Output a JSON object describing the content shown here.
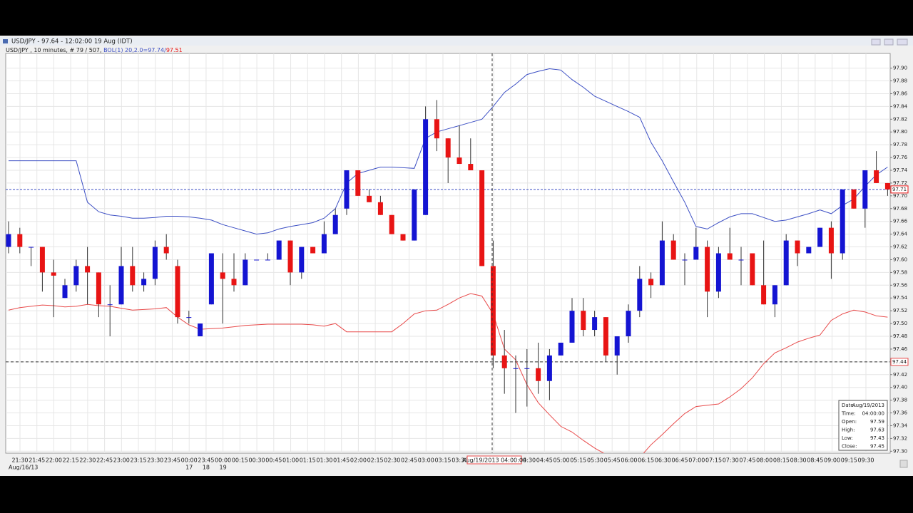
{
  "window": {
    "title": "USD/JPY - 97.64 - 12:02:00 19 Aug (IDT)",
    "legend": {
      "symbol": "USD/JPY , 10 minutes, # 79 / 507, ",
      "upper": "BOL(1) 20,2.0=97.74/",
      "lower": "97.51"
    }
  },
  "chart_data": {
    "type": "candlestick",
    "up_color": "#1414d2",
    "down_color": "#e81414",
    "open": [
      97.62,
      97.64,
      97.62,
      97.62,
      97.58,
      97.54,
      97.56,
      97.59,
      97.58,
      97.53,
      97.53,
      97.59,
      97.56,
      97.57,
      97.62,
      97.59,
      97.51,
      97.48,
      97.53,
      97.58,
      97.57,
      97.56,
      97.6,
      97.6,
      97.6,
      97.63,
      97.58,
      97.62,
      97.61,
      97.64,
      97.68,
      97.74,
      97.7,
      97.69,
      97.67,
      97.64,
      97.63,
      97.67,
      97.82,
      97.79,
      97.76,
      97.75,
      97.74,
      97.59,
      97.45,
      97.43,
      97.43,
      97.43,
      97.41,
      97.45,
      97.47,
      97.52,
      97.49,
      97.51,
      97.45,
      97.48,
      97.52,
      97.57,
      97.56,
      97.63,
      97.6,
      97.6,
      97.62,
      97.55,
      97.61,
      97.6,
      97.61,
      97.56,
      97.53,
      97.56,
      97.63,
      97.61,
      97.62,
      97.65,
      97.61,
      97.71,
      97.68,
      97.74,
      97.72
    ],
    "high": [
      97.66,
      97.65,
      97.62,
      97.62,
      97.6,
      97.57,
      97.6,
      97.62,
      97.58,
      97.56,
      97.62,
      97.62,
      97.58,
      97.63,
      97.64,
      97.6,
      97.52,
      97.5,
      97.61,
      97.61,
      97.61,
      97.61,
      97.6,
      97.61,
      97.63,
      97.63,
      97.62,
      97.62,
      97.66,
      97.68,
      97.74,
      97.74,
      97.71,
      97.7,
      97.67,
      97.64,
      97.71,
      97.84,
      97.85,
      97.79,
      97.81,
      97.79,
      97.74,
      97.63,
      97.49,
      97.45,
      97.46,
      97.47,
      97.46,
      97.47,
      97.54,
      97.54,
      97.52,
      97.51,
      97.48,
      97.53,
      97.59,
      97.58,
      97.66,
      97.64,
      97.61,
      97.65,
      97.63,
      97.62,
      97.65,
      97.62,
      97.61,
      97.63,
      97.56,
      97.64,
      97.63,
      97.62,
      97.65,
      97.66,
      97.71,
      97.71,
      97.74,
      97.77,
      97.72
    ],
    "low": [
      97.61,
      97.61,
      97.59,
      97.55,
      97.51,
      97.54,
      97.55,
      97.53,
      97.51,
      97.48,
      97.53,
      97.55,
      97.55,
      97.56,
      97.6,
      97.5,
      97.5,
      97.48,
      97.53,
      97.5,
      97.55,
      97.56,
      97.6,
      97.6,
      97.6,
      97.56,
      97.57,
      97.61,
      97.61,
      97.64,
      97.67,
      97.7,
      97.69,
      97.67,
      97.64,
      97.63,
      97.63,
      97.67,
      97.77,
      97.72,
      97.75,
      97.74,
      97.59,
      97.43,
      97.39,
      97.36,
      97.37,
      97.39,
      97.38,
      97.45,
      97.47,
      97.48,
      97.48,
      97.44,
      97.42,
      97.47,
      97.51,
      97.54,
      97.56,
      97.6,
      97.56,
      97.6,
      97.51,
      97.54,
      97.6,
      97.56,
      97.56,
      97.53,
      97.51,
      97.56,
      97.59,
      97.61,
      97.62,
      97.57,
      97.6,
      97.68,
      97.65,
      97.72,
      97.7
    ],
    "close": [
      97.64,
      97.62,
      97.62,
      97.58,
      97.575,
      97.56,
      97.59,
      97.58,
      97.53,
      97.53,
      97.59,
      97.56,
      97.57,
      97.62,
      97.61,
      97.51,
      97.51,
      97.5,
      97.61,
      97.57,
      97.56,
      97.6,
      97.6,
      97.6,
      97.63,
      97.58,
      97.62,
      97.61,
      97.64,
      97.67,
      97.74,
      97.7,
      97.69,
      97.67,
      97.64,
      97.63,
      97.71,
      97.82,
      97.79,
      97.76,
      97.75,
      97.74,
      97.59,
      97.45,
      97.43,
      97.43,
      97.43,
      97.41,
      97.45,
      97.47,
      97.52,
      97.49,
      97.51,
      97.45,
      97.48,
      97.52,
      97.57,
      97.56,
      97.63,
      97.6,
      97.6,
      97.62,
      97.55,
      97.61,
      97.6,
      97.6,
      97.56,
      97.53,
      97.56,
      97.63,
      97.61,
      97.62,
      97.65,
      97.61,
      97.71,
      97.68,
      97.74,
      97.72,
      97.71
    ],
    "bands": {
      "upper_color": "#3c4fc4",
      "lower_color": "#e84a4a",
      "upper": [
        97.755,
        97.755,
        97.755,
        97.755,
        97.755,
        97.755,
        97.755,
        97.69,
        97.675,
        97.67,
        97.668,
        97.665,
        97.665,
        97.666,
        97.668,
        97.668,
        97.667,
        97.665,
        97.662,
        97.655,
        97.65,
        97.645,
        97.64,
        97.642,
        97.648,
        97.652,
        97.655,
        97.658,
        97.665,
        97.68,
        97.72,
        97.735,
        97.74,
        97.745,
        97.745,
        97.744,
        97.743,
        97.79,
        97.8,
        97.805,
        97.81,
        97.815,
        97.82,
        97.84,
        97.862,
        97.875,
        97.89,
        97.895,
        97.899,
        97.897,
        97.882,
        97.87,
        97.856,
        97.848,
        97.84,
        97.832,
        97.823,
        97.784,
        97.755,
        97.722,
        97.69,
        97.652,
        97.648,
        97.658,
        97.667,
        97.672,
        97.672,
        97.666,
        97.66,
        97.662,
        97.667,
        97.672,
        97.678,
        97.672,
        97.685,
        97.695,
        97.715,
        97.733,
        97.745
      ],
      "lower": [
        97.521,
        97.525,
        97.527,
        97.529,
        97.528,
        97.526,
        97.527,
        97.53,
        97.528,
        97.527,
        97.524,
        97.521,
        97.522,
        97.523,
        97.525,
        97.51,
        97.498,
        97.491,
        97.492,
        97.493,
        97.495,
        97.497,
        97.498,
        97.499,
        97.499,
        97.499,
        97.499,
        97.498,
        97.496,
        97.5,
        97.487,
        97.487,
        97.487,
        97.487,
        97.487,
        97.5,
        97.515,
        97.52,
        97.521,
        97.53,
        97.54,
        97.547,
        97.543,
        97.515,
        97.46,
        97.443,
        97.404,
        97.376,
        97.357,
        97.339,
        97.33,
        97.317,
        97.305,
        97.295,
        97.29,
        97.288,
        97.29,
        97.31,
        97.326,
        97.343,
        97.359,
        97.37,
        97.372,
        97.374,
        97.385,
        97.398,
        97.415,
        97.437,
        97.454,
        97.462,
        97.471,
        97.477,
        97.482,
        97.505,
        97.515,
        97.521,
        97.518,
        97.512,
        97.51
      ]
    },
    "ylim": [
      97.297,
      97.923
    ],
    "yticks": [
      {
        "value": 97.3,
        "label": "97.30"
      },
      97.32,
      97.34,
      97.36,
      97.38,
      {
        "value": 97.4,
        "label": "97.40"
      },
      97.42,
      97.44,
      97.46,
      97.48,
      {
        "value": 97.5,
        "label": "97.50"
      },
      97.52,
      97.54,
      97.56,
      97.58,
      {
        "value": 97.6,
        "label": "97.60"
      },
      97.62,
      97.64,
      97.66,
      97.68,
      {
        "value": 97.7,
        "label": "97.70"
      },
      97.72,
      97.74,
      97.76,
      97.78,
      {
        "value": 97.8,
        "label": "97.80"
      },
      97.82,
      97.84,
      97.86,
      97.88,
      {
        "value": 97.9,
        "label": "97.90"
      }
    ],
    "x_tick_labels": [
      "21:30",
      "21:45",
      "22:00",
      "22:15",
      "22:30",
      "22:45",
      "23:00",
      "23:15",
      "23:30",
      "23:45",
      "00:00",
      "23:45",
      "00:00",
      "00:15",
      "00:30",
      "00:45",
      "01:00",
      "01:15",
      "01:30",
      "01:45",
      "02:00",
      "02:15",
      "02:30",
      "02:45",
      "03:00",
      "03:15",
      "03:30",
      null,
      null,
      null,
      "04:30",
      "04:45",
      "05:00",
      "05:15",
      "05:30",
      "05:45",
      "06:00",
      "06:15",
      "06:30",
      "06:45",
      "07:00",
      "07:15",
      "07:30",
      "07:45",
      "08:00",
      "08:15",
      "08:30",
      "08:45",
      "09:00",
      "09:15",
      "09:30"
    ],
    "x_tick_dates": [
      null,
      null,
      null,
      null,
      null,
      null,
      null,
      null,
      null,
      null,
      "17",
      "18",
      "19",
      null,
      null,
      null,
      null,
      null,
      null,
      null,
      null,
      null,
      null,
      null,
      null,
      null,
      null,
      null,
      null,
      null,
      null,
      null,
      null,
      null,
      null,
      null,
      null,
      null,
      null,
      null,
      null,
      null,
      null,
      null,
      null,
      null,
      null,
      null,
      null,
      null,
      null
    ],
    "x_start_label": "Aug/16/13",
    "grid": true,
    "last_price": 97.71,
    "crosshair": {
      "x_label": "Aug/19/2013 04:00:00",
      "y": 97.44
    },
    "tooltip": [
      [
        "Date:",
        "Aug/19/2013"
      ],
      [
        "Time:",
        "04:00:00"
      ],
      [
        "Open:",
        97.59
      ],
      [
        "High:",
        97.63
      ],
      [
        "Low:",
        97.43
      ],
      [
        "Close:",
        97.45
      ]
    ]
  }
}
